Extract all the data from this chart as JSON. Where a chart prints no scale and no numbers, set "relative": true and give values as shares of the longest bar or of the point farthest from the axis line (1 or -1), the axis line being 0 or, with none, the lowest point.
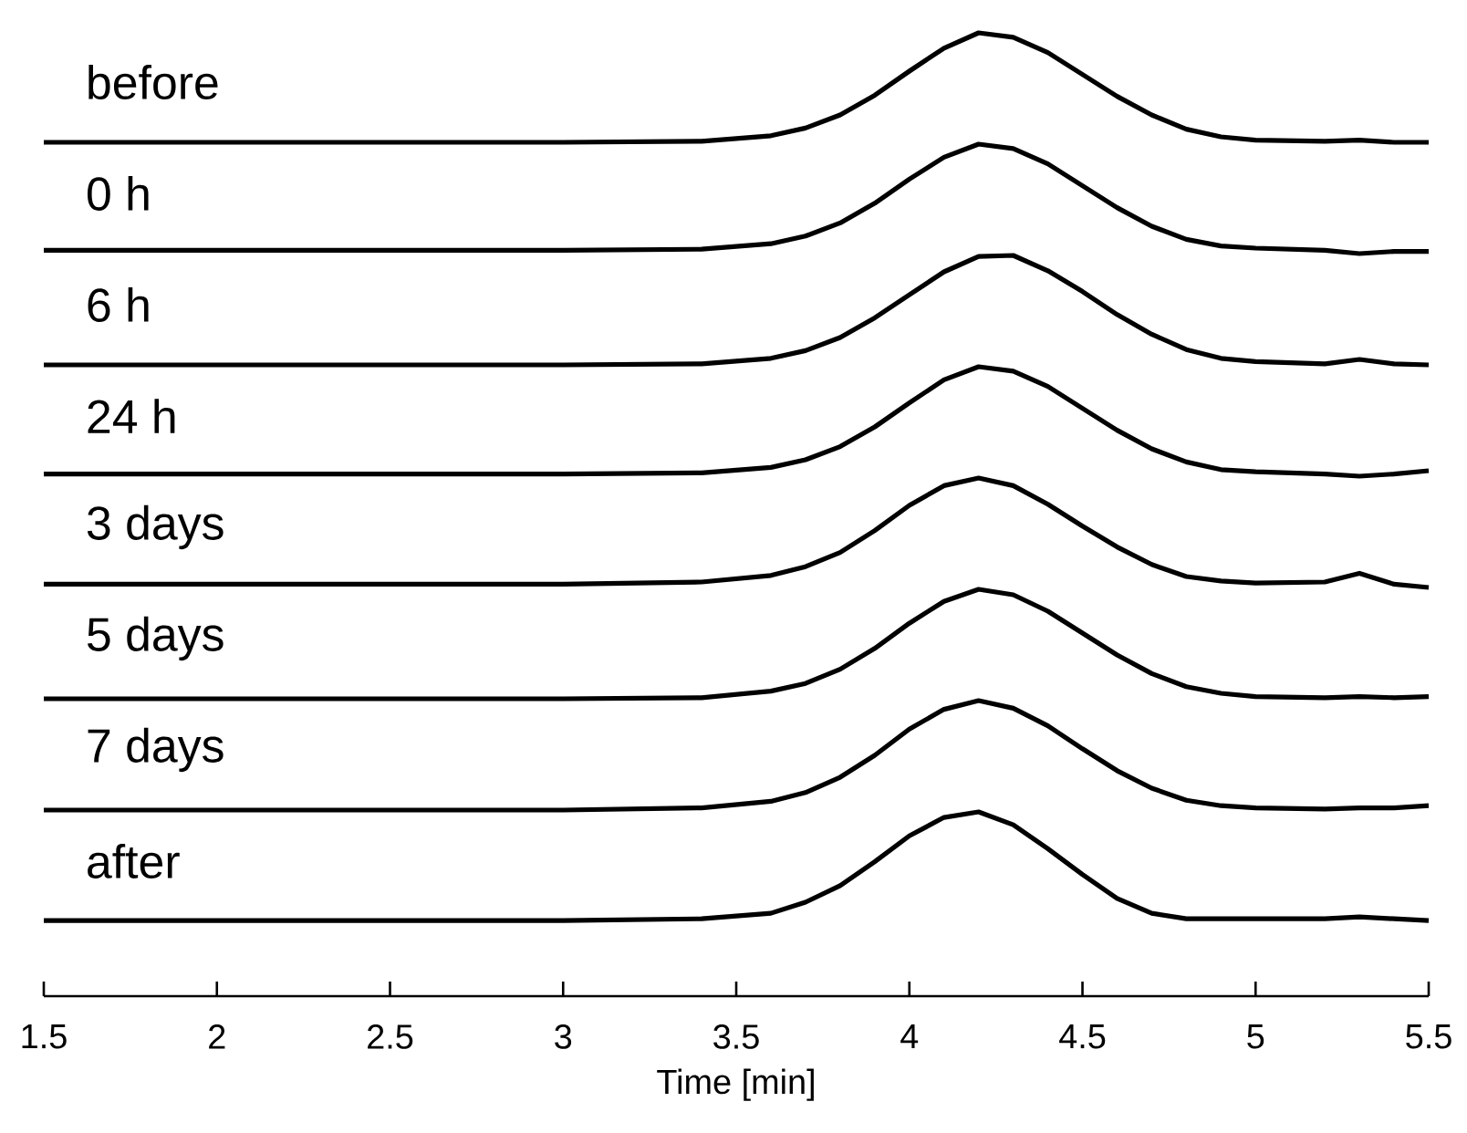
{
  "chart_data": [
    {
      "type": "line",
      "relative": true,
      "xlim": [
        1.5,
        5.5
      ],
      "x": [
        1.5,
        3.0,
        3.4,
        3.6,
        3.7,
        3.8,
        3.9,
        4.0,
        4.1,
        4.2,
        4.3,
        4.4,
        4.5,
        4.6,
        4.7,
        4.8,
        4.9,
        5.0,
        5.2,
        5.3,
        5.4,
        5.5
      ],
      "series": [
        {
          "name": "before",
          "color": "#000000",
          "values": [
            0,
            0,
            0.01,
            0.06,
            0.13,
            0.25,
            0.43,
            0.65,
            0.86,
            1.0,
            0.96,
            0.82,
            0.62,
            0.42,
            0.25,
            0.12,
            0.05,
            0.02,
            0.01,
            0.02,
            0.0,
            0.0
          ]
        }
      ]
    },
    {
      "type": "line",
      "relative": true,
      "xlim": [
        1.5,
        5.5
      ],
      "x": [
        1.5,
        3.0,
        3.4,
        3.6,
        3.7,
        3.8,
        3.9,
        4.0,
        4.1,
        4.2,
        4.3,
        4.4,
        4.5,
        4.6,
        4.7,
        4.8,
        4.9,
        5.0,
        5.2,
        5.3,
        5.4,
        5.5
      ],
      "series": [
        {
          "name": "0 h",
          "color": "#000000",
          "values": [
            0.03,
            0.03,
            0.04,
            0.09,
            0.16,
            0.28,
            0.46,
            0.68,
            0.88,
            1.0,
            0.96,
            0.82,
            0.62,
            0.42,
            0.25,
            0.13,
            0.07,
            0.05,
            0.03,
            0,
            0.02,
            0.02
          ]
        }
      ]
    },
    {
      "type": "line",
      "relative": true,
      "xlim": [
        1.5,
        5.5
      ],
      "x": [
        1.5,
        3.0,
        3.4,
        3.6,
        3.7,
        3.8,
        3.9,
        4.0,
        4.1,
        4.2,
        4.3,
        4.4,
        4.5,
        4.6,
        4.7,
        4.8,
        4.9,
        5.0,
        5.2,
        5.3,
        5.4,
        5.5
      ],
      "series": [
        {
          "name": "6 h",
          "color": "#000000",
          "values": [
            0,
            0,
            0.01,
            0.06,
            0.13,
            0.25,
            0.43,
            0.64,
            0.85,
            0.99,
            1.0,
            0.86,
            0.67,
            0.46,
            0.28,
            0.14,
            0.06,
            0.03,
            0.01,
            0.05,
            0.01,
            0.0
          ]
        }
      ]
    },
    {
      "type": "line",
      "relative": true,
      "xlim": [
        1.5,
        5.5
      ],
      "x": [
        1.5,
        3.0,
        3.4,
        3.6,
        3.7,
        3.8,
        3.9,
        4.0,
        4.1,
        4.2,
        4.3,
        4.4,
        4.5,
        4.6,
        4.7,
        4.8,
        4.9,
        5.0,
        5.2,
        5.3,
        5.4,
        5.5
      ],
      "series": [
        {
          "name": "24 h",
          "color": "#000000",
          "values": [
            0.02,
            0.02,
            0.03,
            0.08,
            0.15,
            0.27,
            0.45,
            0.67,
            0.88,
            1.0,
            0.96,
            0.82,
            0.62,
            0.42,
            0.25,
            0.13,
            0.06,
            0.04,
            0.02,
            0,
            0.02,
            0.05
          ]
        }
      ]
    },
    {
      "type": "line",
      "relative": true,
      "xlim": [
        1.5,
        5.5
      ],
      "x": [
        1.5,
        3.0,
        3.4,
        3.6,
        3.7,
        3.8,
        3.9,
        4.0,
        4.1,
        4.2,
        4.3,
        4.4,
        4.5,
        4.6,
        4.7,
        4.8,
        4.9,
        5.0,
        5.2,
        5.3,
        5.4,
        5.5
      ],
      "series": [
        {
          "name": "3 days",
          "color": "#000000",
          "values": [
            0.03,
            0.03,
            0.05,
            0.11,
            0.19,
            0.32,
            0.52,
            0.75,
            0.93,
            1.0,
            0.93,
            0.76,
            0.56,
            0.37,
            0.21,
            0.1,
            0.06,
            0.04,
            0.05,
            0.13,
            0.03,
            0.0
          ]
        }
      ]
    },
    {
      "type": "line",
      "relative": true,
      "xlim": [
        1.5,
        5.5
      ],
      "x": [
        1.5,
        3.0,
        3.4,
        3.6,
        3.7,
        3.8,
        3.9,
        4.0,
        4.1,
        4.2,
        4.3,
        4.4,
        4.5,
        4.6,
        4.7,
        4.8,
        4.9,
        5.0,
        5.2,
        5.3,
        5.4,
        5.5
      ],
      "series": [
        {
          "name": "5 days",
          "color": "#000000",
          "values": [
            0,
            0,
            0.01,
            0.07,
            0.14,
            0.27,
            0.46,
            0.69,
            0.89,
            1.0,
            0.95,
            0.8,
            0.6,
            0.4,
            0.23,
            0.11,
            0.05,
            0.02,
            0.01,
            0.02,
            0.01,
            0.02
          ]
        }
      ]
    },
    {
      "type": "line",
      "relative": true,
      "xlim": [
        1.5,
        5.5
      ],
      "x": [
        1.5,
        3.0,
        3.4,
        3.6,
        3.7,
        3.8,
        3.9,
        4.0,
        4.1,
        4.2,
        4.3,
        4.4,
        4.5,
        4.6,
        4.7,
        4.8,
        4.9,
        5.0,
        5.2,
        5.3,
        5.4,
        5.5
      ],
      "series": [
        {
          "name": "7 days",
          "color": "#000000",
          "values": [
            0,
            0,
            0.02,
            0.08,
            0.16,
            0.3,
            0.5,
            0.74,
            0.92,
            1.0,
            0.93,
            0.77,
            0.56,
            0.36,
            0.2,
            0.09,
            0.04,
            0.02,
            0.01,
            0.02,
            0.02,
            0.04
          ]
        }
      ]
    },
    {
      "type": "line",
      "relative": true,
      "xlim": [
        1.5,
        5.5
      ],
      "xticks": [
        1.5,
        2,
        2.5,
        3,
        3.5,
        4,
        4.5,
        5,
        5.5
      ],
      "xlabel": "Time [min]",
      "x": [
        1.5,
        3.0,
        3.4,
        3.6,
        3.7,
        3.8,
        3.9,
        4.0,
        4.1,
        4.2,
        4.3,
        4.4,
        4.5,
        4.6,
        4.7,
        4.8,
        4.9,
        5.0,
        5.2,
        5.3,
        5.4,
        5.5
      ],
      "series": [
        {
          "name": "after",
          "color": "#000000",
          "values": [
            0.41,
            0.41,
            0.42,
            0.45,
            0.51,
            0.6,
            0.73,
            0.87,
            0.97,
            1.0,
            0.93,
            0.8,
            0.66,
            0.53,
            0.45,
            0.42,
            0.42,
            0.42,
            0.42,
            0.43,
            0.42,
            0.41
          ]
        }
      ]
    }
  ]
}
